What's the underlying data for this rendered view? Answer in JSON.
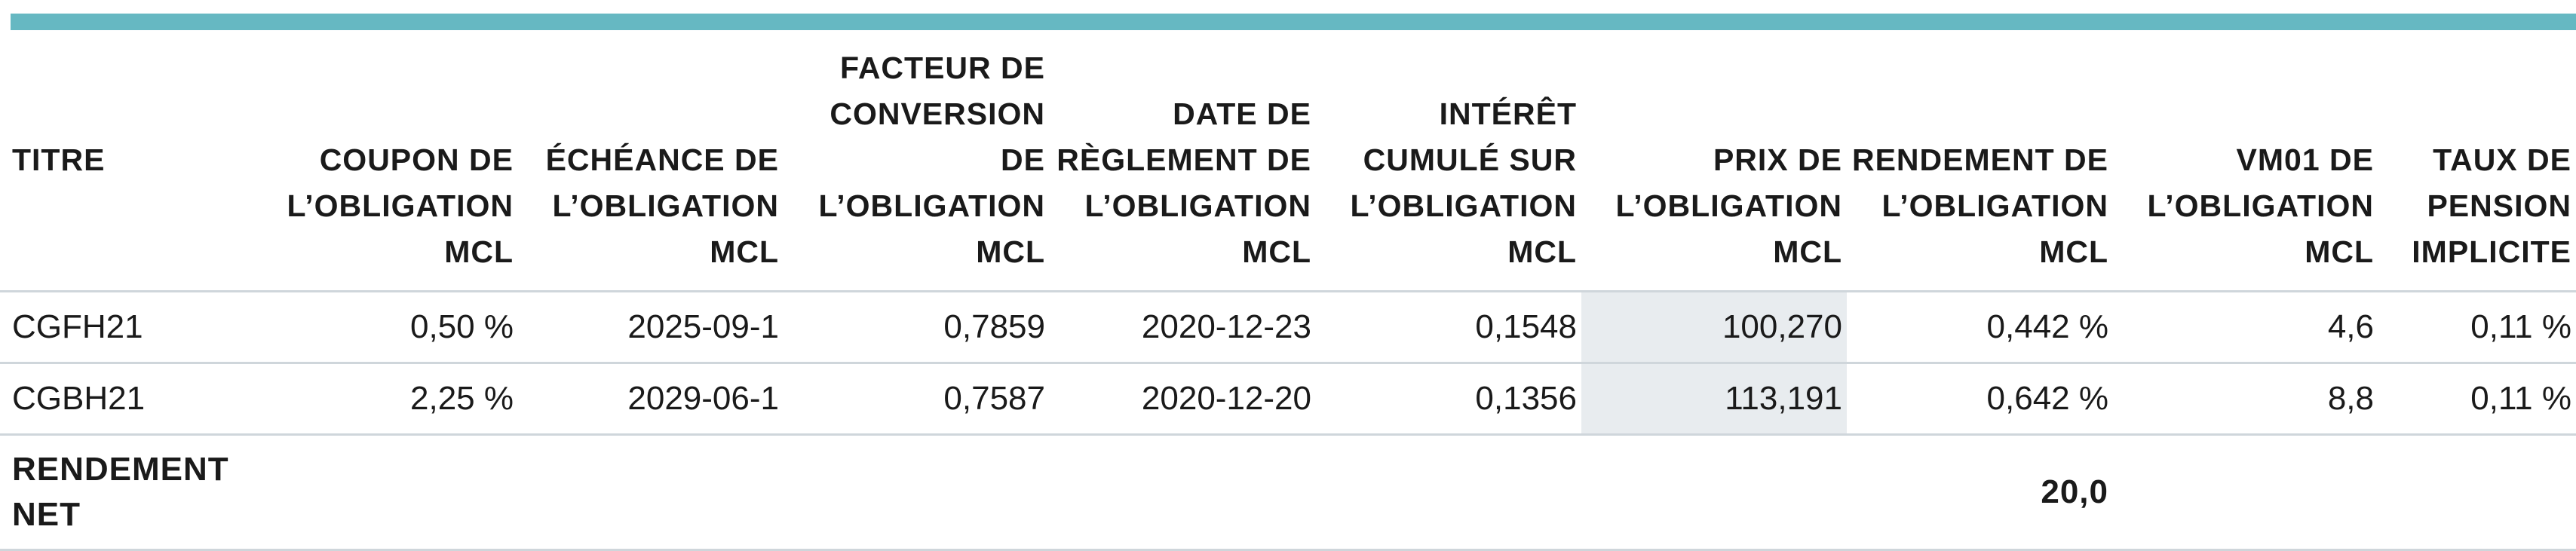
{
  "table": {
    "columns": [
      "TITRE",
      "COUPON DE L’OBLIGATION MCL",
      "ÉCHÉANCE DE L’OBLIGATION MCL",
      "FACTEUR DE CONVERSION DE L’OBLIGATION MCL",
      "DATE DE RÈGLEMENT DE L’OBLIGATION MCL",
      "INTÉRÊT CUMULÉ SUR L’OBLIGATION MCL",
      "PRIX DE L’OBLIGATION MCL",
      "RENDEMENT DE L’OBLIGATION MCL",
      "VM01 DE L’OBLIGATION MCL",
      "TAUX DE PENSION IMPLICITE"
    ],
    "rows": [
      [
        "CGFH21",
        "0,50 %",
        "2025-09-1",
        "0,7859",
        "2020-12-23",
        "0,1548",
        "100,270",
        "0,442 %",
        "4,6",
        "0,11 %"
      ],
      [
        "CGBH21",
        "2,25 %",
        "2029-06-1",
        "0,7587",
        "2020-12-20",
        "0,1356",
        "113,191",
        "0,642 %",
        "8,8",
        "0,11 %"
      ]
    ],
    "total": {
      "label": "RENDEMENT NET",
      "value": "20,0"
    }
  }
}
